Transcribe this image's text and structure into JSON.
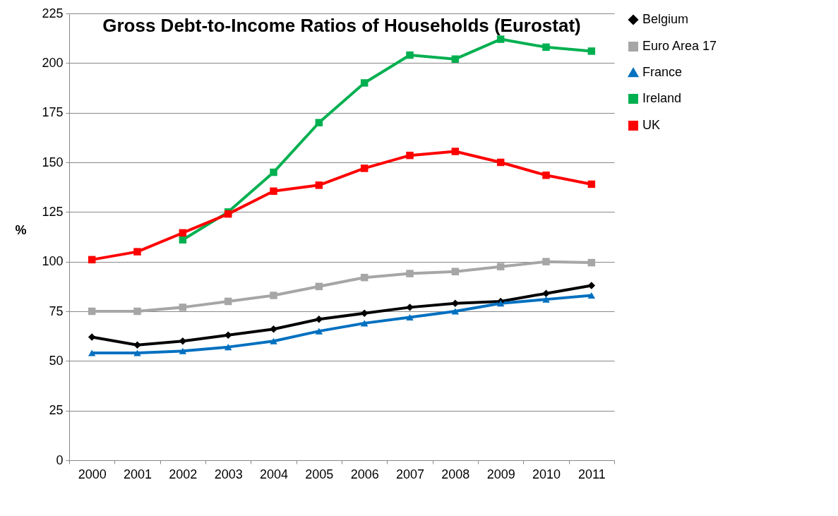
{
  "chart_data": {
    "type": "line",
    "title": "Gross Debt-to-Income Ratios of Households (Eurostat)",
    "ylabel": "%",
    "categories": [
      "2000",
      "2001",
      "2002",
      "2003",
      "2004",
      "2005",
      "2006",
      "2007",
      "2008",
      "2009",
      "2010",
      "2011"
    ],
    "ylim": [
      0,
      225
    ],
    "yticks": [
      0,
      25,
      50,
      75,
      100,
      125,
      150,
      175,
      200,
      225
    ],
    "grid": "y",
    "legend": "right",
    "line_style": "solid",
    "series": [
      {
        "name": "Belgium",
        "color": "#000000",
        "marker": "diamond",
        "values": [
          62,
          58,
          60,
          63,
          66,
          71,
          74,
          77,
          79,
          80,
          84,
          88
        ]
      },
      {
        "name": "Euro Area 17",
        "color": "#a6a6a6",
        "marker": "square",
        "values": [
          75,
          75,
          77,
          80,
          83,
          87.5,
          92,
          94,
          95,
          97.5,
          100,
          99.5
        ]
      },
      {
        "name": "France",
        "color": "#0070c0",
        "marker": "triangle",
        "values": [
          54,
          54,
          55,
          57,
          60,
          65,
          69,
          72,
          75,
          79,
          81,
          83
        ]
      },
      {
        "name": "Ireland",
        "color": "#00b050",
        "marker": "square",
        "values": [
          null,
          null,
          111,
          125,
          145,
          170,
          190,
          204,
          202,
          212,
          208,
          206
        ]
      },
      {
        "name": "UK",
        "color": "#ff0000",
        "marker": "square",
        "values": [
          101,
          105,
          114.5,
          124,
          135.5,
          138.5,
          147,
          153.5,
          155.5,
          150,
          143.5,
          139
        ]
      }
    ]
  }
}
